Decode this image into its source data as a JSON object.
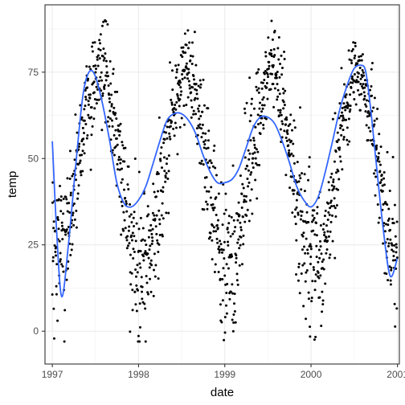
{
  "chart_data": {
    "type": "scatter",
    "title": "",
    "xlabel": "date",
    "ylabel": "temp",
    "xlim": [
      "1996-12-01",
      "2001-01-09"
    ],
    "ylim": [
      -9.5,
      94.5
    ],
    "x_ticks": [
      {
        "value": "1997-01-01",
        "label": "1997"
      },
      {
        "value": "1998-01-01",
        "label": "1998"
      },
      {
        "value": "1999-01-01",
        "label": "1999"
      },
      {
        "value": "2000-01-01",
        "label": "2000"
      },
      {
        "value": "2001-01-01",
        "label": "2001"
      }
    ],
    "x_minor_ticks": [
      "1997-07-02",
      "1998-07-02",
      "1999-07-02",
      "2000-07-02"
    ],
    "y_ticks": [
      0,
      25,
      50,
      75
    ],
    "y_minor_ticks": [
      12.5,
      37.5,
      62.5,
      87.5
    ],
    "grid": true,
    "legend": "none",
    "colors": {
      "points": "#000000",
      "smooth": "#3366FF",
      "panel_border": "#333333",
      "grid_major": "#ebebeb",
      "grid_minor": "#f5f5f5"
    },
    "scatter_description": {
      "note": "Daily temperature readings, one per day, 1997-01-01 to 2000-12-31; individual values approximated by a seasonal pattern with scatter",
      "winter_low_range": [
        -3,
        40
      ],
      "summer_high_range": [
        60,
        90
      ]
    },
    "smooth_line": {
      "x": [
        "1997-01-01",
        "1997-01-20",
        "1997-02-10",
        "1997-03-10",
        "1997-04-10",
        "1997-05-10",
        "1997-06-05",
        "1997-07-01",
        "1997-08-01",
        "1997-09-01",
        "1997-10-01",
        "1997-11-01",
        "1997-12-01",
        "1998-01-01",
        "1998-02-01",
        "1998-03-01",
        "1998-04-01",
        "1998-05-01",
        "1998-06-01",
        "1998-07-01",
        "1998-08-01",
        "1998-09-01",
        "1998-10-01",
        "1998-11-01",
        "1998-12-01",
        "1999-01-01",
        "1999-02-01",
        "1999-03-01",
        "1999-04-01",
        "1999-05-01",
        "1999-06-01",
        "1999-07-01",
        "1999-08-01",
        "1999-09-01",
        "1999-10-01",
        "1999-11-01",
        "1999-12-01",
        "2000-01-01",
        "2000-02-01",
        "2000-03-01",
        "2000-04-01",
        "2000-05-01",
        "2000-06-01",
        "2000-07-01",
        "2000-08-01",
        "2000-08-20",
        "2000-09-10",
        "2000-10-01",
        "2000-11-01",
        "2000-12-01",
        "2000-12-31"
      ],
      "y": [
        55,
        28,
        10,
        25,
        48,
        68,
        75,
        74,
        66,
        55,
        43,
        37,
        36,
        38,
        42,
        48,
        55,
        61,
        63,
        63,
        61,
        57,
        51,
        46,
        43,
        43,
        44,
        47,
        53,
        59,
        62,
        62,
        60,
        55,
        49,
        42,
        38,
        36,
        39,
        46,
        55,
        64,
        71,
        76,
        77,
        75,
        64,
        50,
        30,
        16,
        21
      ]
    }
  }
}
